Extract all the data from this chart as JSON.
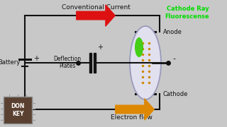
{
  "bg_color": "#2a2a2a",
  "wire_color": "#000000",
  "text_color": "#000000",
  "conventional_arrow_color": "#dd1111",
  "electron_arrow_color": "#dd8800",
  "cathode_ray_label_color": "#00dd00",
  "tube_outline_color": "#9999bb",
  "tube_fill_color": "#e0e0ee",
  "beam_dot_color": "#cc8800",
  "green_glow_color": "#33cc00",
  "chip_face_color": "#5a4030",
  "chip_edge_color": "#888888",
  "chip_text_color": "#ffffff",
  "label_conventional": "Conventional Current",
  "label_electron": "Electron flow",
  "label_battery": "Battery",
  "label_deflection": "Deflection\nPlates",
  "label_anode": "Anode",
  "label_cathode": "Cathode",
  "label_cathode_ray": "Cathode Ray\nFluorescense",
  "label_don_key": "DON\nKEY",
  "label_plus": "+",
  "label_minus": "-"
}
